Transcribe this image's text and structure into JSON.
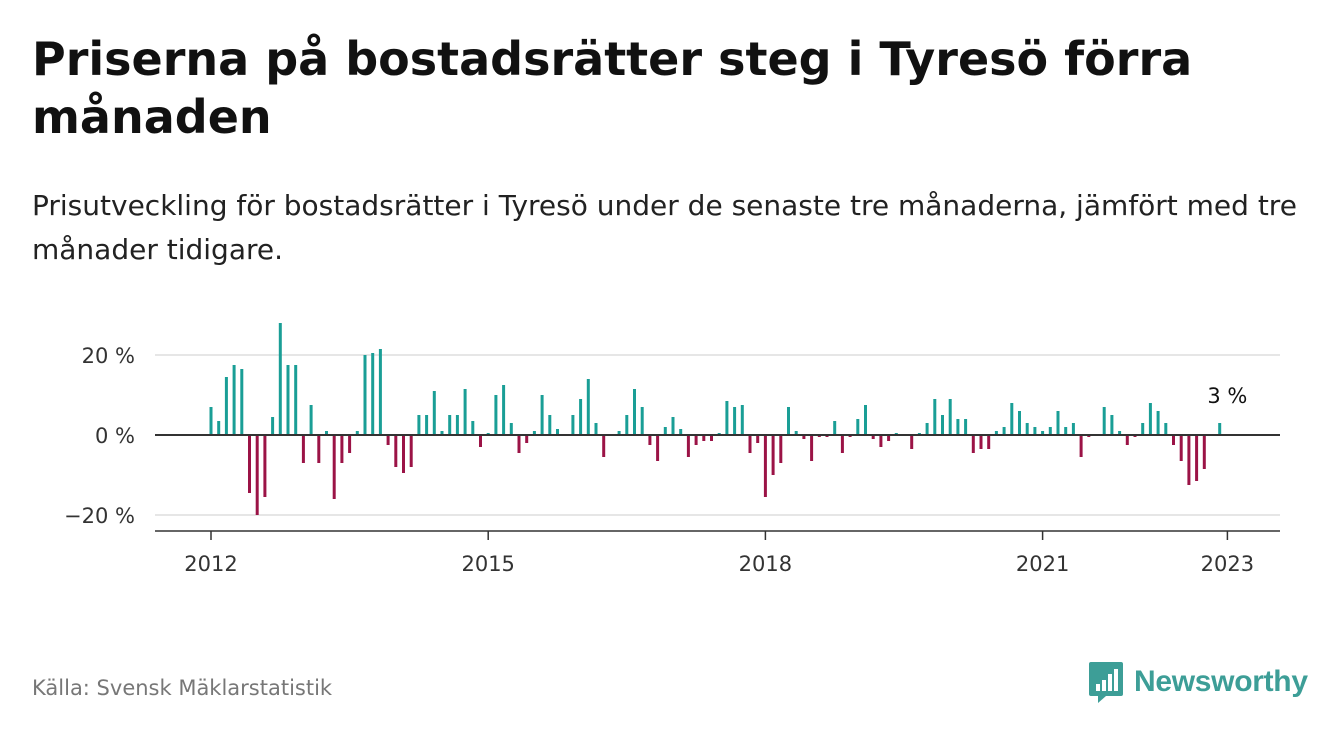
{
  "header": {
    "title": "Priserna på bostadsrätter steg i Tyresö förra månaden",
    "subtitle": "Prisutveckling för bostadsrätter i Tyresö under de senaste tre månaderna, jämfört med tre månader tidigare."
  },
  "footer": {
    "source": "Källa: Svensk Mäklarstatistik",
    "brand": "Newsworthy"
  },
  "colors": {
    "positive": "#1a9e96",
    "negative": "#9b1346",
    "grid": "#dddddd",
    "axis": "#333333",
    "brand": "#3d9e97"
  },
  "chart_data": {
    "type": "bar",
    "x_start": "2012-01",
    "x_ticks": [
      "2012",
      "2015",
      "2018",
      "2021",
      "2023"
    ],
    "y_ticks": [
      {
        "value": 20,
        "label": "20 %"
      },
      {
        "value": 0,
        "label": "0 %"
      },
      {
        "value": -20,
        "label": "−20 %"
      }
    ],
    "ylim": [
      -24,
      29
    ],
    "grid": true,
    "annotation": {
      "label": "3 %",
      "x": "2023-01"
    },
    "values": [
      7,
      3.5,
      14.5,
      17.5,
      16.5,
      -14.5,
      -20,
      -15.5,
      4.5,
      28,
      17.5,
      17.5,
      -7,
      7.5,
      -7,
      1,
      -16,
      -7,
      -4.5,
      1,
      20,
      20.5,
      21.5,
      -2.5,
      -8,
      -9.5,
      -8,
      5,
      5,
      11,
      1,
      5,
      5,
      11.5,
      3.5,
      -3,
      0.5,
      10,
      12.5,
      3,
      -4.5,
      -2,
      1,
      10,
      5,
      1.5,
      0,
      5,
      9,
      14,
      3,
      -5.5,
      0,
      1,
      5,
      11.5,
      7,
      -2.5,
      -6.5,
      2,
      4.5,
      1.5,
      -5.5,
      -2.5,
      -1.5,
      -1.5,
      0.5,
      8.5,
      7,
      7.5,
      -4.5,
      -2,
      -15.5,
      -10,
      -7,
      7,
      1,
      -1,
      -6.5,
      -0.5,
      -0.5,
      3.5,
      -4.5,
      -0.5,
      4,
      7.5,
      -1,
      -3,
      -1.5,
      0.5,
      0,
      -3.5,
      0.5,
      3,
      9,
      5,
      9,
      4,
      4,
      -4.5,
      -3.5,
      -3.5,
      1,
      2,
      8,
      6,
      3,
      2,
      1,
      2,
      6,
      2,
      3,
      -5.5,
      -0.5,
      0,
      7,
      5,
      1,
      -2.5,
      -0.5,
      3,
      8,
      6,
      3,
      -2.5,
      -6.5,
      -12.5,
      -11.5,
      -8.5,
      0,
      3
    ]
  }
}
